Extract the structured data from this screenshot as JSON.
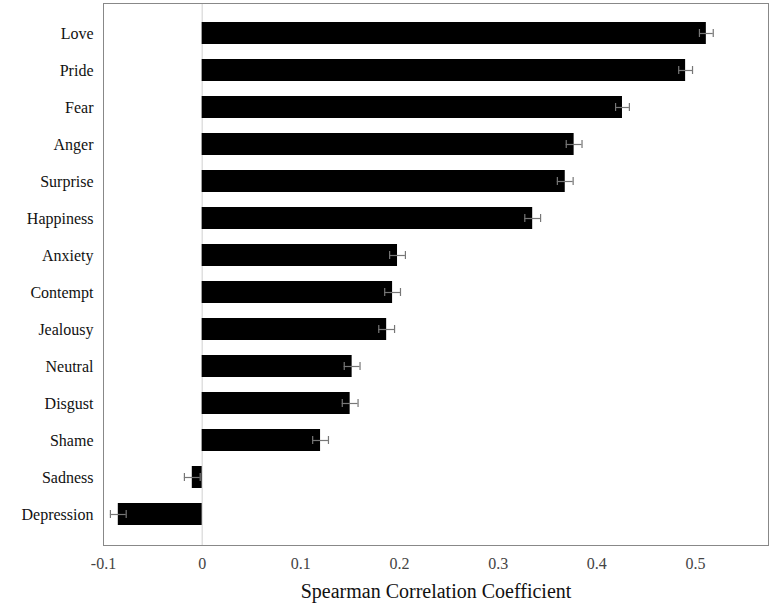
{
  "chart_data": {
    "type": "bar",
    "orientation": "horizontal",
    "x_label": "Spearman Correlation Coefficient",
    "categories": [
      "Love",
      "Pride",
      "Fear",
      "Anger",
      "Surprise",
      "Happiness",
      "Anxiety",
      "Contempt",
      "Jealousy",
      "Neutral",
      "Disgust",
      "Shame",
      "Sadness",
      "Depression"
    ],
    "values": [
      0.511,
      0.49,
      0.426,
      0.377,
      0.368,
      0.335,
      0.198,
      0.193,
      0.187,
      0.152,
      0.15,
      0.12,
      -0.01,
      -0.085
    ],
    "errors": [
      0.007,
      0.007,
      0.007,
      0.008,
      0.008,
      0.008,
      0.008,
      0.008,
      0.008,
      0.008,
      0.008,
      0.008,
      0.008,
      0.008
    ],
    "color": "#000000",
    "xlim": [
      -0.1,
      0.574
    ],
    "xticks": [
      -0.1,
      0,
      0.1,
      0.2,
      0.3,
      0.4,
      0.5
    ],
    "grid": false
  }
}
